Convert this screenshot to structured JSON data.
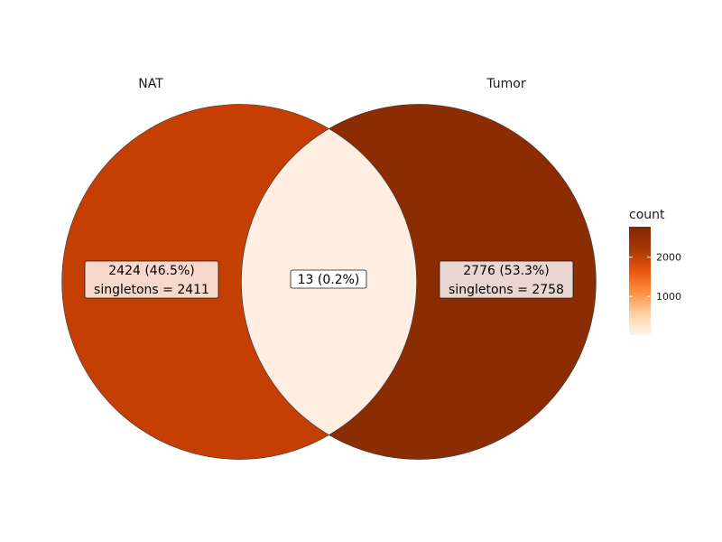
{
  "sets": [
    {
      "name": "NAT"
    },
    {
      "name": "Tumor"
    }
  ],
  "regions": [
    {
      "id": "nat-only",
      "count": 2424,
      "line1": "2424 (46.5%)",
      "line2": "singletons = 2411",
      "fill": "#C53F02",
      "label_fill": "#F7D8CB"
    },
    {
      "id": "intersection",
      "count": 13,
      "line1": "13 (0.2%)",
      "line2": "",
      "fill": "#FEEDE0",
      "label_fill": "#FFFFFF"
    },
    {
      "id": "tumor-only",
      "count": 2776,
      "line1": "2776 (53.3%)",
      "line2": "singletons = 2758",
      "fill": "#8B2C02",
      "label_fill": "#E9D6D0"
    }
  ],
  "legend": {
    "title": "count",
    "min": 13,
    "max": 2776,
    "ticks": [
      {
        "value": 1000,
        "label": "1000"
      },
      {
        "value": 2000,
        "label": "2000"
      }
    ],
    "gradient": [
      "#FFF5EB",
      "#FDD0A2",
      "#FD8D3C",
      "#E6550D",
      "#A63603",
      "#7F2704"
    ]
  },
  "colors": {
    "outline": "#3a3a3a",
    "background": "#ffffff"
  }
}
